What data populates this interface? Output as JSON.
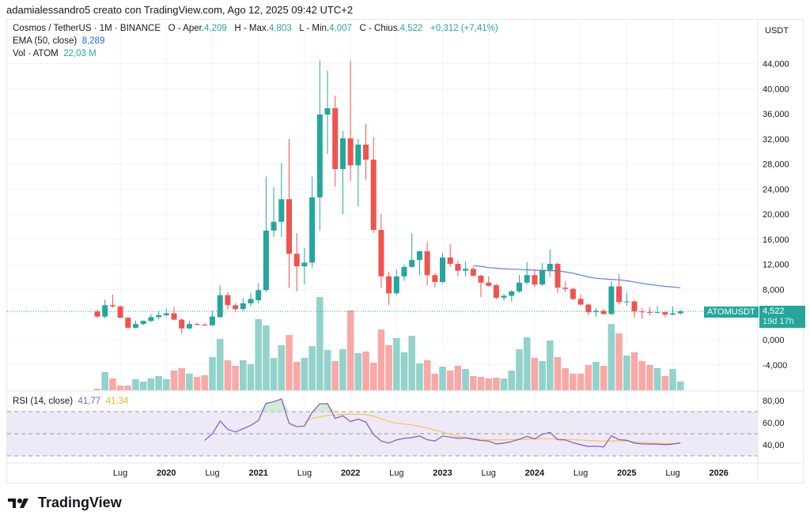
{
  "header": {
    "attribution": "adamialessandro5 creato con TradingView.com, Ago 12, 2025 09:42 UTC+2"
  },
  "legend": {
    "symbol": "Cosmos / TetherUS · 1M · BINANCE",
    "open_label": "O - Aper.",
    "open": "4,209",
    "high_label": "H - Max.",
    "high": "4,803",
    "low_label": "L - Min.",
    "low": "4,007",
    "close_label": "C - Chius.",
    "close": "4,522",
    "change": "+0,312 (+7,41%)",
    "ema_label": "EMA (50, close)",
    "ema_value": "8,289",
    "vol_label": "Vol · ATOM",
    "vol_value": "22,03 M",
    "rsi_label": "RSI (14, close)",
    "rsi_value": "41,77",
    "rsi_ma_value": "41,34"
  },
  "price_axis": {
    "currency": "USDT",
    "ticks": [
      "44,000",
      "40,000",
      "36,000",
      "32,000",
      "28,000",
      "24,000",
      "20,000",
      "16,000",
      "12,000",
      "8,000",
      "0,000",
      "-4,000"
    ],
    "tick_values": [
      44,
      40,
      36,
      32,
      28,
      24,
      20,
      16,
      12,
      8,
      0,
      -4
    ]
  },
  "rsi_axis": {
    "ticks": [
      "80,00",
      "60,00",
      "40,00"
    ],
    "tick_values": [
      80,
      60,
      40
    ],
    "bands": [
      70,
      50,
      30
    ]
  },
  "last_price": {
    "symbol": "ATOMUSDT",
    "price": "4,522",
    "countdown": "19d 17h"
  },
  "time_axis": {
    "labels": [
      {
        "text": "Lug",
        "month": "2019-07",
        "year": false
      },
      {
        "text": "2020",
        "month": "2020-01",
        "year": true
      },
      {
        "text": "Lug",
        "month": "2020-07",
        "year": false
      },
      {
        "text": "2021",
        "month": "2021-01",
        "year": true
      },
      {
        "text": "Lug",
        "month": "2021-07",
        "year": false
      },
      {
        "text": "2022",
        "month": "2022-01",
        "year": true
      },
      {
        "text": "Lug",
        "month": "2022-07",
        "year": false
      },
      {
        "text": "2023",
        "month": "2023-01",
        "year": true
      },
      {
        "text": "Lug",
        "month": "2023-07",
        "year": false
      },
      {
        "text": "2024",
        "month": "2024-01",
        "year": true
      },
      {
        "text": "Lug",
        "month": "2024-07",
        "year": false
      },
      {
        "text": "2025",
        "month": "2025-01",
        "year": true
      },
      {
        "text": "Lug",
        "month": "2025-07",
        "year": false
      },
      {
        "text": "2026",
        "month": "2026-01",
        "year": true
      }
    ]
  },
  "colors": {
    "up": "#26a69a",
    "down": "#ef5350",
    "up_vol": "#92d2cb",
    "down_vol": "#f7a9a7",
    "ema": "#5b7fe0",
    "rsi": "#7e57c2",
    "rsi_ma": "#f2c94c",
    "rsi_band": "#ede9f7"
  },
  "chart_data": {
    "type": "candlestick",
    "interval": "1M",
    "columns": [
      "month",
      "open",
      "high",
      "low",
      "close",
      "volume_M"
    ],
    "candles": [
      [
        "2019-04",
        4.5,
        4.8,
        3.5,
        3.7,
        4
      ],
      [
        "2019-05",
        3.7,
        6.4,
        3.4,
        5.5,
        46
      ],
      [
        "2019-06",
        5.5,
        7.2,
        5.1,
        5.3,
        30
      ],
      [
        "2019-07",
        5.3,
        5.5,
        3.4,
        3.5,
        12
      ],
      [
        "2019-08",
        3.5,
        3.6,
        1.8,
        1.9,
        12
      ],
      [
        "2019-09",
        1.9,
        3.0,
        1.8,
        2.5,
        28
      ],
      [
        "2019-10",
        2.5,
        3.1,
        2.3,
        3.0,
        22
      ],
      [
        "2019-11",
        3.0,
        4.1,
        2.8,
        3.6,
        30
      ],
      [
        "2019-12",
        3.6,
        4.5,
        3.3,
        3.9,
        36
      ],
      [
        "2020-01",
        3.9,
        5.0,
        3.7,
        4.2,
        28
      ],
      [
        "2020-02",
        4.2,
        5.2,
        3.1,
        3.2,
        50
      ],
      [
        "2020-03",
        3.2,
        3.4,
        1.0,
        1.8,
        56
      ],
      [
        "2020-04",
        1.8,
        3.0,
        1.7,
        2.5,
        42
      ],
      [
        "2020-05",
        2.5,
        2.7,
        2.3,
        2.4,
        34
      ],
      [
        "2020-06",
        2.4,
        2.6,
        2.2,
        2.3,
        38
      ],
      [
        "2020-07",
        2.3,
        4.6,
        2.2,
        3.7,
        84
      ],
      [
        "2020-08",
        3.6,
        8.7,
        3.5,
        7.1,
        130
      ],
      [
        "2020-09",
        7.1,
        7.6,
        4.8,
        5.5,
        76
      ],
      [
        "2020-10",
        5.5,
        5.8,
        4.4,
        4.9,
        62
      ],
      [
        "2020-11",
        4.9,
        6.6,
        4.6,
        5.8,
        76
      ],
      [
        "2020-12",
        5.8,
        7.5,
        5.3,
        6.5,
        66
      ],
      [
        "2021-01",
        6.3,
        9.0,
        5.8,
        7.9,
        180
      ],
      [
        "2021-02",
        7.9,
        26.0,
        7.6,
        17.4,
        164
      ],
      [
        "2021-03",
        17.4,
        24.3,
        16.4,
        18.8,
        82
      ],
      [
        "2021-04",
        18.8,
        28.2,
        16.4,
        22.4,
        114
      ],
      [
        "2021-05",
        22.4,
        32.0,
        8.3,
        13.7,
        140
      ],
      [
        "2021-06",
        13.7,
        17.0,
        7.7,
        11.7,
        72
      ],
      [
        "2021-07",
        11.7,
        14.6,
        8.8,
        12.3,
        82
      ],
      [
        "2021-08",
        12.3,
        26.0,
        11.5,
        22.7,
        112
      ],
      [
        "2021-09",
        22.7,
        44.5,
        17.4,
        35.9,
        236
      ],
      [
        "2021-10",
        35.9,
        42.9,
        29.6,
        36.9,
        102
      ],
      [
        "2021-11",
        36.9,
        38.9,
        24.4,
        27.2,
        74
      ],
      [
        "2021-12",
        27.2,
        33.3,
        20.0,
        32.1,
        104
      ],
      [
        "2022-01",
        32.1,
        44.5,
        25.3,
        27.8,
        202
      ],
      [
        "2022-02",
        27.8,
        32.0,
        21.2,
        31.1,
        94
      ],
      [
        "2022-03",
        31.1,
        34.4,
        25.5,
        28.7,
        98
      ],
      [
        "2022-04",
        28.7,
        32.3,
        17.0,
        17.5,
        70
      ],
      [
        "2022-05",
        17.5,
        20.0,
        8.3,
        10.1,
        154
      ],
      [
        "2022-06",
        10.1,
        10.8,
        5.5,
        7.4,
        114
      ],
      [
        "2022-07",
        7.4,
        11.2,
        7.1,
        10.1,
        132
      ],
      [
        "2022-08",
        10.1,
        12.0,
        9.4,
        11.6,
        96
      ],
      [
        "2022-09",
        11.6,
        17.0,
        11.5,
        12.7,
        138
      ],
      [
        "2022-10",
        12.7,
        14.2,
        10.3,
        14.1,
        68
      ],
      [
        "2022-11",
        14.1,
        15.6,
        8.7,
        10.3,
        76
      ],
      [
        "2022-12",
        10.3,
        10.6,
        8.3,
        9.2,
        42
      ],
      [
        "2023-01",
        9.2,
        13.8,
        9.0,
        13.1,
        60
      ],
      [
        "2023-02",
        13.1,
        15.2,
        11.6,
        12.1,
        50
      ],
      [
        "2023-03",
        12.1,
        12.6,
        10.1,
        11.0,
        62
      ],
      [
        "2023-04",
        11.0,
        12.5,
        10.1,
        11.3,
        54
      ],
      [
        "2023-05",
        11.3,
        11.6,
        10.0,
        10.2,
        36
      ],
      [
        "2023-06",
        10.2,
        10.4,
        6.8,
        9.1,
        34
      ],
      [
        "2023-07",
        9.1,
        10.1,
        8.5,
        8.6,
        30
      ],
      [
        "2023-08",
        8.7,
        8.9,
        6.5,
        6.7,
        32
      ],
      [
        "2023-09",
        6.7,
        7.3,
        6.2,
        7.0,
        30
      ],
      [
        "2023-10",
        7.0,
        7.9,
        6.1,
        7.7,
        50
      ],
      [
        "2023-11",
        7.7,
        10.3,
        7.5,
        9.1,
        104
      ],
      [
        "2023-12",
        9.1,
        12.4,
        8.8,
        10.3,
        134
      ],
      [
        "2024-01",
        10.3,
        11.2,
        8.4,
        8.8,
        82
      ],
      [
        "2024-02",
        8.8,
        12.2,
        8.6,
        11.1,
        74
      ],
      [
        "2024-03",
        11.1,
        14.4,
        10.0,
        12.1,
        126
      ],
      [
        "2024-04",
        12.1,
        12.3,
        7.4,
        8.3,
        84
      ],
      [
        "2024-05",
        8.3,
        9.3,
        7.6,
        8.1,
        56
      ],
      [
        "2024-06",
        8.1,
        8.3,
        6.3,
        6.5,
        42
      ],
      [
        "2024-07",
        6.5,
        7.2,
        5.5,
        5.6,
        42
      ],
      [
        "2024-08",
        5.6,
        5.8,
        3.9,
        4.4,
        64
      ],
      [
        "2024-09",
        4.4,
        5.0,
        3.7,
        4.6,
        72
      ],
      [
        "2024-10",
        4.6,
        4.9,
        4.0,
        4.1,
        62
      ],
      [
        "2024-11",
        4.1,
        9.3,
        3.9,
        8.5,
        168
      ],
      [
        "2024-12",
        8.5,
        10.5,
        5.6,
        6.0,
        144
      ],
      [
        "2025-01",
        6.0,
        7.5,
        5.4,
        6.1,
        88
      ],
      [
        "2025-02",
        6.1,
        6.3,
        3.5,
        4.5,
        96
      ],
      [
        "2025-03",
        4.5,
        5.1,
        3.3,
        4.4,
        74
      ],
      [
        "2025-04",
        4.4,
        5.2,
        3.9,
        4.3,
        64
      ],
      [
        "2025-05",
        4.3,
        5.4,
        4.2,
        4.4,
        56
      ],
      [
        "2025-06",
        4.4,
        4.5,
        3.6,
        4.0,
        36
      ],
      [
        "2025-07",
        4.0,
        5.3,
        3.9,
        4.2,
        54
      ],
      [
        "2025-08",
        4.209,
        4.803,
        4.007,
        4.522,
        22.03
      ]
    ],
    "ema50": {
      "start": "2023-05",
      "values": [
        11.8,
        11.7,
        11.5,
        11.4,
        11.3,
        11.25,
        11.2,
        11.15,
        11.1,
        11.05,
        11.0,
        11.0,
        10.8,
        10.6,
        10.3,
        10.0,
        9.8,
        9.7,
        9.6,
        9.55,
        9.4,
        9.2,
        9.0,
        8.8,
        8.65,
        8.5,
        8.4,
        8.289
      ]
    },
    "rsi14": {
      "start": "2020-06",
      "values": [
        44,
        50,
        61.5,
        54,
        51.6,
        54.5,
        57.5,
        62,
        77.5,
        79,
        81.5,
        59.4,
        56.4,
        57,
        69.3,
        77,
        77.3,
        63.9,
        66.2,
        61,
        63.2,
        60.6,
        49.3,
        43.4,
        41.5,
        44.4,
        45.8,
        46.5,
        47.9,
        44.6,
        43.4,
        47.9,
        47,
        45.8,
        46.2,
        45,
        43.9,
        43.4,
        40.8,
        41.5,
        42.9,
        45,
        47.6,
        45.3,
        49.5,
        51.2,
        44.6,
        44.4,
        41.8,
        40.1,
        38.5,
        38.7,
        38,
        48.1,
        44.6,
        44.1,
        41.5,
        40.8,
        40.6,
        40.6,
        40.1,
        40.6,
        41.77
      ]
    },
    "rsi_ma": {
      "start": "2021-07",
      "values": [
        60.4,
        63.9,
        65.3,
        66.5,
        67,
        67.4,
        67.6,
        67.6,
        67.4,
        65.8,
        63.6,
        61,
        59.4,
        58.7,
        58,
        56.8,
        55.2,
        53.3,
        51.4,
        49.8,
        47.6,
        46.5,
        45.5,
        45,
        44.6,
        44.4,
        44.4,
        44.6,
        44.8,
        45,
        45.3,
        45.5,
        45.5,
        45.3,
        44.8,
        44.6,
        44.4,
        43.9,
        43.6,
        43.4,
        43.4,
        43.6,
        43.4,
        42.9,
        42.2,
        41.8,
        41.3,
        41.1,
        41.1,
        41.34
      ]
    },
    "price_range": [
      -6,
      46
    ],
    "rsi_range": [
      20,
      90
    ]
  },
  "branding": {
    "logo_text": "TradingView"
  }
}
